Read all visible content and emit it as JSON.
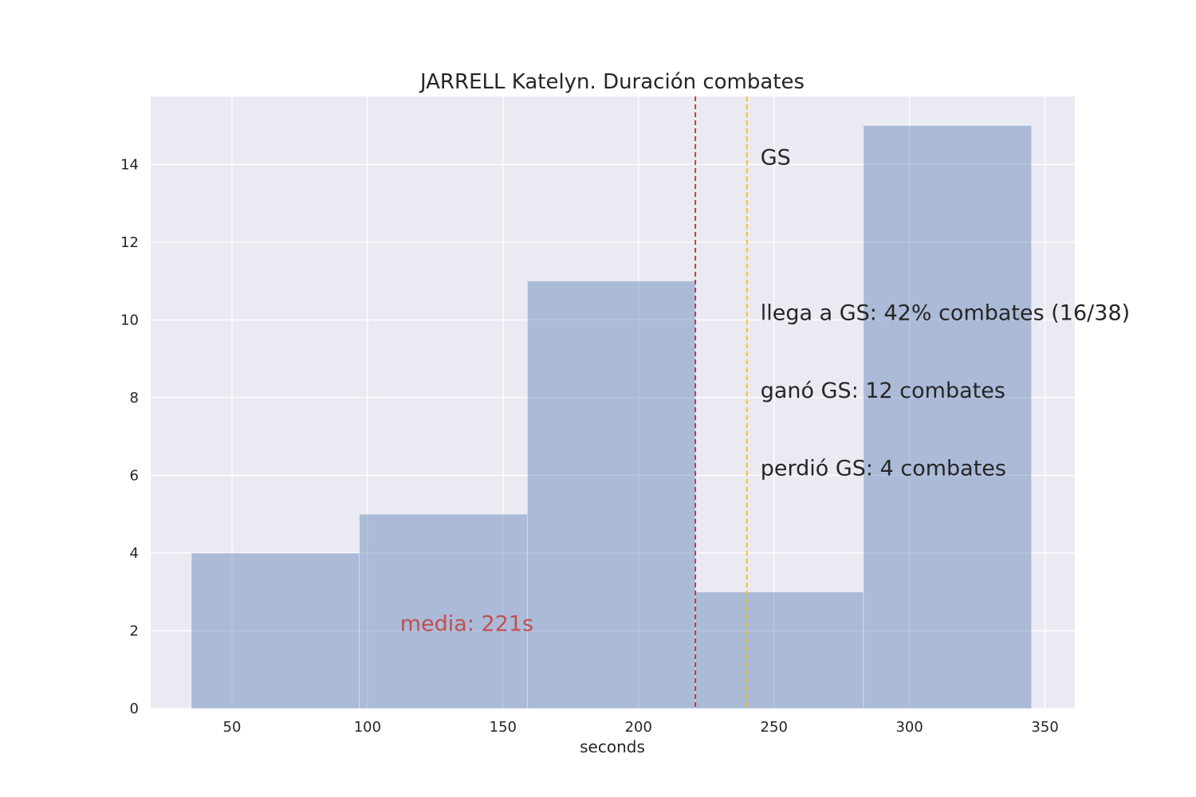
{
  "chart_data": {
    "type": "bar",
    "subtype": "histogram",
    "title": "JARRELL Katelyn. Duración combates",
    "xlabel": "seconds",
    "ylabel": "",
    "xlim": [
      20,
      361
    ],
    "ylim": [
      0,
      15.75
    ],
    "xticks": [
      50,
      100,
      150,
      200,
      250,
      300,
      350
    ],
    "yticks": [
      0,
      2,
      4,
      6,
      8,
      10,
      12,
      14
    ],
    "grid": true,
    "bins": [
      {
        "start": 35,
        "end": 97,
        "count": 4
      },
      {
        "start": 97,
        "end": 159,
        "count": 5
      },
      {
        "start": 159,
        "end": 221,
        "count": 11
      },
      {
        "start": 221,
        "end": 283,
        "count": 3
      },
      {
        "start": 283,
        "end": 345,
        "count": 15
      }
    ],
    "vlines": [
      {
        "x": 221,
        "color": "#d62728",
        "style": "dashed"
      },
      {
        "x": 240,
        "color": "#f2c200",
        "style": "dashed"
      }
    ],
    "annotations": [
      {
        "text": "media: 221s",
        "x": 112,
        "y": 2,
        "color": "#c44e52"
      },
      {
        "text": "GS",
        "x": 245,
        "y": 14,
        "color": "#262626"
      },
      {
        "text": "llega a GS: 42% combates (16/38)",
        "x": 245,
        "y": 10,
        "color": "#262626"
      },
      {
        "text": "ganó GS: 12 combates",
        "x": 245,
        "y": 8,
        "color": "#262626"
      },
      {
        "text": "perdió GS: 4 combates",
        "x": 245,
        "y": 6,
        "color": "#262626"
      }
    ],
    "colors": {
      "bar": "#4c72b0",
      "background": "#eaeaf2",
      "grid": "#ffffff"
    }
  }
}
